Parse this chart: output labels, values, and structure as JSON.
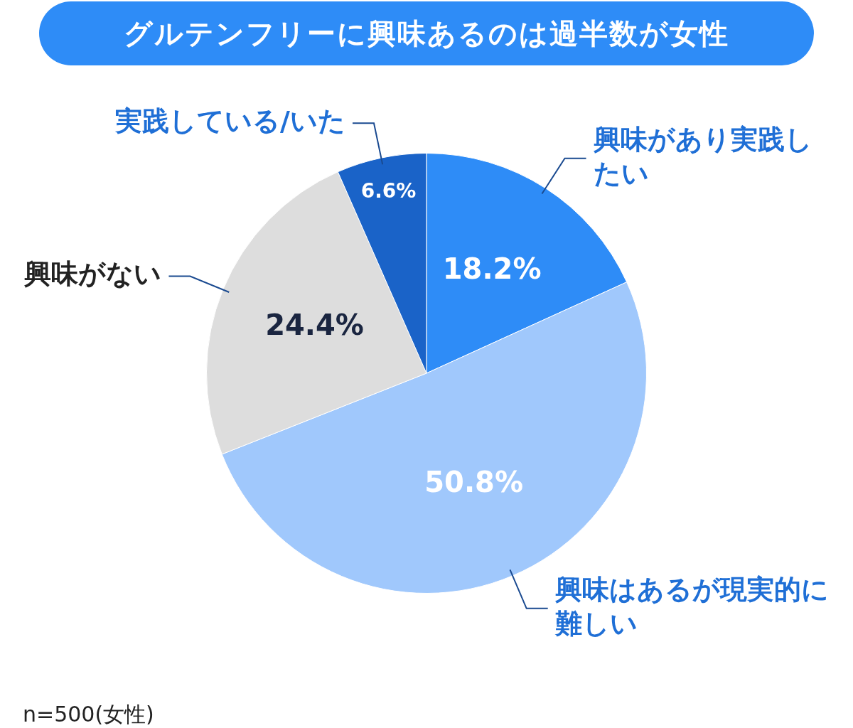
{
  "chart_data": {
    "type": "pie",
    "title": "グルテンフリーに興味あるのは過半数が女性",
    "categories": [
      "興味があり実践したい",
      "興味はあるが現実的に難しい",
      "興味がない",
      "実践している/いた"
    ],
    "values": [
      18.2,
      50.8,
      24.4,
      6.6
    ],
    "colors": [
      "#2e8cf7",
      "#a0c8fc",
      "#dddddd",
      "#1a63c8"
    ],
    "value_labels": [
      "18.2%",
      "50.8%",
      "24.4%",
      "6.6%"
    ],
    "annotations": [
      "n=500(女性)"
    ]
  }
}
